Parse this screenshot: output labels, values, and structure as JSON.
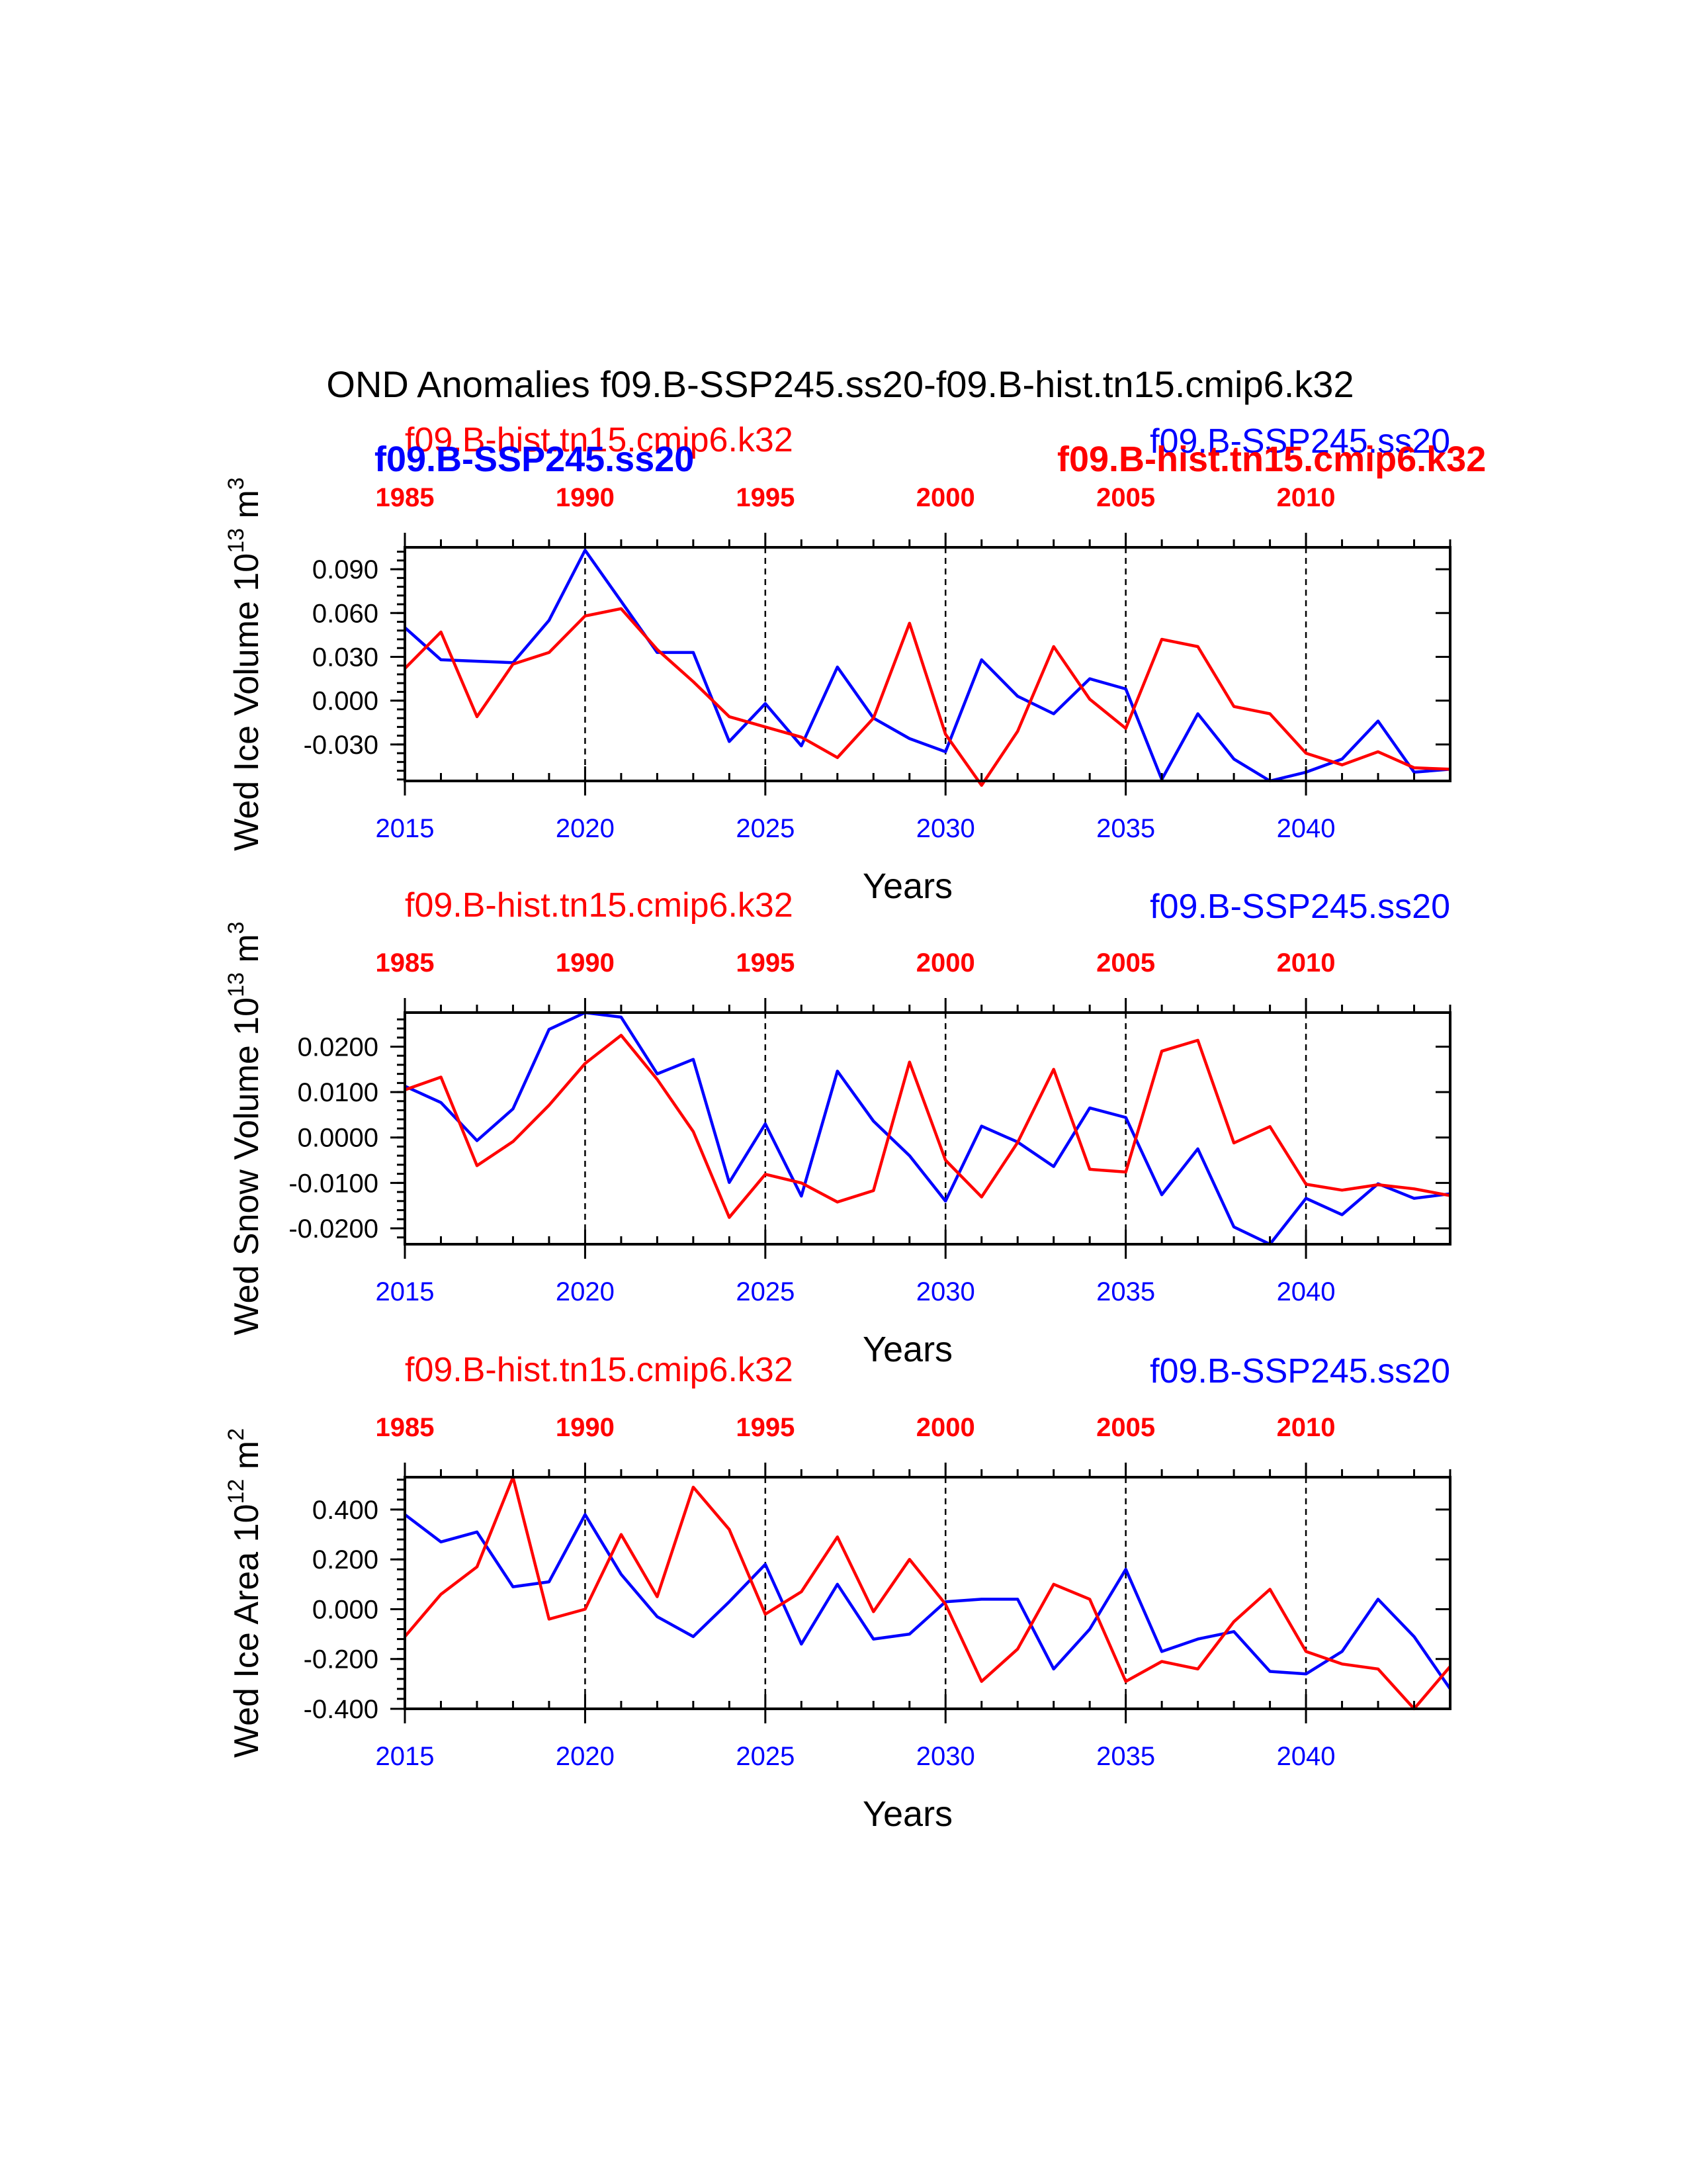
{
  "figure": {
    "title": "OND Anomalies f09.B-SSP245.ss20-f09.B-hist.tn15.cmip6.k32",
    "colors": {
      "ssp": "#0000ff",
      "hist": "#ff0000",
      "axis": "#000000"
    }
  },
  "chart_data": [
    {
      "type": "line",
      "ylabel": "Wed Ice Volume 10",
      "ylabel_exp": "13",
      "ylabel_unit": "m",
      "ylabel_unit_exp": "3",
      "xlabel": "Years",
      "bottom_axis": {
        "ticks": [
          "2015",
          "2020",
          "2025",
          "2030",
          "2035",
          "2040"
        ],
        "range": [
          2015,
          2044
        ]
      },
      "top_axis": {
        "ticks": [
          "1985",
          "1990",
          "1995",
          "2000",
          "2005",
          "2010"
        ],
        "range": [
          1985,
          2014
        ]
      },
      "ylim": [
        -0.055,
        0.105
      ],
      "yticks": [
        0.09,
        0.06,
        0.03,
        0.0,
        -0.03
      ],
      "ytick_labels": [
        "0.090",
        "0.060",
        "0.030",
        "0.000",
        "-0.030"
      ],
      "legend": {
        "hist_regular": "f09.B-hist.tn15.cmip6.k32",
        "ssp_bold": "f09.B-SSP245.ss20",
        "ssp_regular": "f09.B-SSP245.ss20",
        "hist_bold": "f09.B-hist.tn15.cmip6.k32"
      },
      "series": [
        {
          "name": "f09.B-SSP245.ss20",
          "color": "#0000ff",
          "values": [
            0.05,
            0.028,
            0.027,
            0.026,
            0.055,
            0.103,
            0.068,
            0.033,
            0.033,
            -0.028,
            -0.002,
            -0.031,
            0.023,
            -0.012,
            -0.026,
            -0.035,
            0.028,
            0.003,
            -0.009,
            0.015,
            0.008,
            -0.054,
            -0.009,
            -0.04,
            -0.055,
            -0.049,
            -0.04,
            -0.014,
            -0.049,
            -0.047
          ]
        },
        {
          "name": "f09.B-hist.tn15.cmip6.k32",
          "color": "#ff0000",
          "values": [
            0.022,
            0.047,
            -0.011,
            0.025,
            0.033,
            0.058,
            0.063,
            0.035,
            0.013,
            -0.011,
            -0.018,
            -0.025,
            -0.039,
            -0.012,
            0.053,
            -0.023,
            -0.058,
            -0.021,
            0.037,
            0.001,
            -0.019,
            0.042,
            0.037,
            -0.004,
            -0.009,
            -0.036,
            -0.044,
            -0.035,
            -0.046,
            -0.047
          ]
        }
      ]
    },
    {
      "type": "line",
      "ylabel": "Wed Snow Volume 10",
      "ylabel_exp": "13",
      "ylabel_unit": "m",
      "ylabel_unit_exp": "3",
      "xlabel": "Years",
      "bottom_axis": {
        "ticks": [
          "2015",
          "2020",
          "2025",
          "2030",
          "2035",
          "2040"
        ],
        "range": [
          2015,
          2044
        ]
      },
      "top_axis": {
        "ticks": [
          "1985",
          "1990",
          "1995",
          "2000",
          "2005",
          "2010"
        ],
        "range": [
          1985,
          2014
        ]
      },
      "ylim": [
        -0.0235,
        0.0275
      ],
      "yticks": [
        0.02,
        0.01,
        0.0,
        -0.01,
        -0.02
      ],
      "ytick_labels": [
        "0.0200",
        "0.0100",
        "0.0000",
        "-0.0100",
        "-0.0200"
      ],
      "legend": {
        "hist_regular": "f09.B-hist.tn15.cmip6.k32",
        "ssp_regular": "f09.B-SSP245.ss20"
      },
      "series": [
        {
          "name": "f09.B-SSP245.ss20",
          "color": "#0000ff",
          "values": [
            0.0113,
            0.0077,
            -0.0007,
            0.0063,
            0.0238,
            0.0275,
            0.0265,
            0.014,
            0.0172,
            -0.0099,
            0.003,
            -0.0129,
            0.0146,
            0.0036,
            -0.004,
            -0.014,
            0.0025,
            -0.001,
            -0.0064,
            0.0065,
            0.0044,
            -0.0126,
            -0.0025,
            -0.0197,
            -0.0235,
            -0.0134,
            -0.017,
            -0.0102,
            -0.0134,
            -0.0124
          ]
        },
        {
          "name": "f09.B-hist.tn15.cmip6.k32",
          "color": "#ff0000",
          "values": [
            0.0105,
            0.0133,
            -0.0062,
            -0.0009,
            0.0071,
            0.0163,
            0.0225,
            0.0128,
            0.0013,
            -0.0176,
            -0.0081,
            -0.01,
            -0.0142,
            -0.0117,
            0.0166,
            -0.005,
            -0.0131,
            -0.0011,
            0.015,
            -0.007,
            -0.0076,
            0.019,
            0.0214,
            -0.0012,
            0.0024,
            -0.0103,
            -0.0116,
            -0.0104,
            -0.0113,
            -0.0128
          ]
        }
      ]
    },
    {
      "type": "line",
      "ylabel": "Wed Ice Area 10",
      "ylabel_exp": "12",
      "ylabel_unit": "m",
      "ylabel_unit_exp": "2",
      "xlabel": "Years",
      "bottom_axis": {
        "ticks": [
          "2015",
          "2020",
          "2025",
          "2030",
          "2035",
          "2040"
        ],
        "range": [
          2015,
          2044
        ]
      },
      "top_axis": {
        "ticks": [
          "1985",
          "1990",
          "1995",
          "2000",
          "2005",
          "2010"
        ],
        "range": [
          1985,
          2014
        ]
      },
      "ylim": [
        -0.4,
        0.53
      ],
      "yticks": [
        0.4,
        0.2,
        0.0,
        -0.2,
        -0.4
      ],
      "ytick_labels": [
        "0.400",
        "0.200",
        "0.000",
        "-0.200",
        "-0.400"
      ],
      "legend": {
        "hist_regular": "f09.B-hist.tn15.cmip6.k32",
        "ssp_regular": "f09.B-SSP245.ss20"
      },
      "series": [
        {
          "name": "f09.B-SSP245.ss20",
          "color": "#0000ff",
          "values": [
            0.38,
            0.27,
            0.31,
            0.09,
            0.11,
            0.38,
            0.14,
            -0.03,
            -0.11,
            0.03,
            0.18,
            -0.14,
            0.1,
            -0.12,
            -0.1,
            0.03,
            0.04,
            0.04,
            -0.24,
            -0.08,
            0.16,
            -0.17,
            -0.12,
            -0.09,
            -0.25,
            -0.26,
            -0.17,
            0.04,
            -0.11,
            -0.32
          ]
        },
        {
          "name": "f09.B-hist.tn15.cmip6.k32",
          "color": "#ff0000",
          "values": [
            -0.11,
            0.06,
            0.17,
            0.53,
            -0.04,
            0.0,
            0.3,
            0.05,
            0.49,
            0.32,
            -0.02,
            0.07,
            0.29,
            -0.01,
            0.2,
            0.02,
            -0.29,
            -0.16,
            0.1,
            0.04,
            -0.29,
            -0.21,
            -0.24,
            -0.05,
            0.08,
            -0.17,
            -0.22,
            -0.24,
            -0.4,
            -0.23
          ]
        }
      ]
    }
  ]
}
